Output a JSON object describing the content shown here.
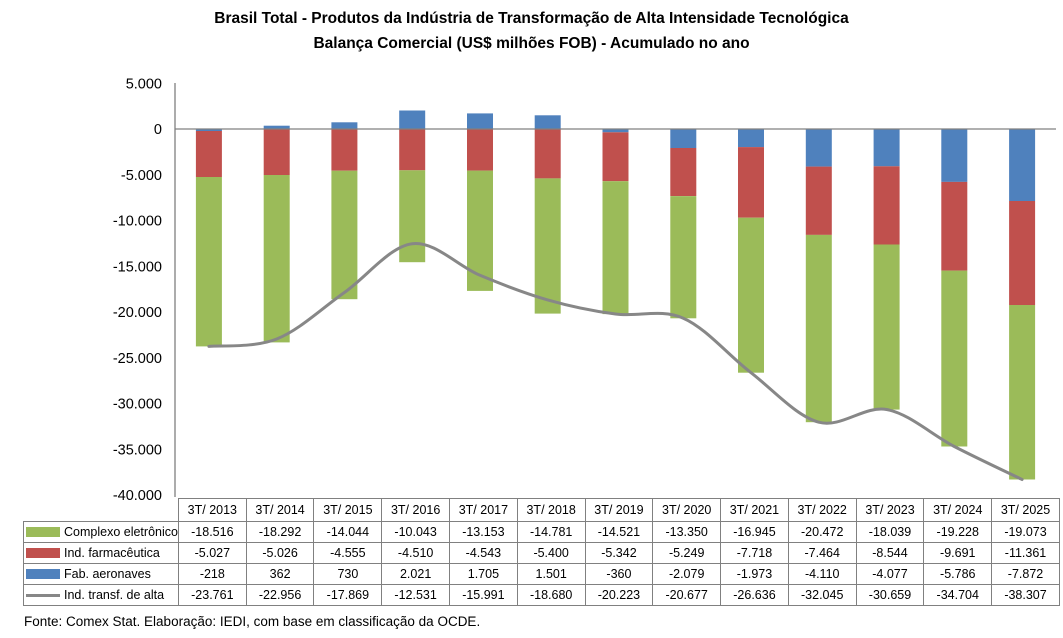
{
  "title": {
    "line1": "Brasil Total - Produtos da Indústria de Transformação de Alta Intensidade Tecnológica",
    "line2": "Balança Comercial (US$ milhões FOB) - Acumulado no ano"
  },
  "footer": {
    "source_note": "Fonte: Comex Stat. Elaboração: IEDI, com base em classificação da OCDE."
  },
  "chart_data": {
    "type": "bar",
    "subtype": "stacked-bars-with-smoothed-line-overlay-and-data-table",
    "title": "Brasil Total - Produtos da Indústria de Transformação de Alta Intensidade Tecnológica - Balança Comercial (US$ milhões FOB) - Acumulado no ano",
    "xlabel": "",
    "ylabel": "",
    "categories": [
      "3T/ 2013",
      "3T/ 2014",
      "3T/ 2015",
      "3T/ 2016",
      "3T/ 2017",
      "3T/ 2018",
      "3T/ 2019",
      "3T/ 2020",
      "3T/ 2021",
      "3T/ 2022",
      "3T/ 2023",
      "3T/ 2024",
      "3T/ 2025"
    ],
    "series": [
      {
        "name": "Complexo eletrônico",
        "type": "bar",
        "color": "#9BBB59",
        "values": [
          -18516,
          -18292,
          -14044,
          -10043,
          -13153,
          -14781,
          -14521,
          -13350,
          -16945,
          -20472,
          -18039,
          -19228,
          -19073
        ]
      },
      {
        "name": "Ind. farmacêutica",
        "type": "bar",
        "color": "#C0504D",
        "values": [
          -5027,
          -5026,
          -4555,
          -4510,
          -4543,
          -5400,
          -5342,
          -5249,
          -7718,
          -7464,
          -8544,
          -9691,
          -11361
        ]
      },
      {
        "name": "Fab. aeronaves",
        "type": "bar",
        "color": "#4F81BD",
        "values": [
          -218,
          362,
          730,
          2021,
          1705,
          1501,
          -360,
          -2079,
          -1973,
          -4110,
          -4077,
          -5786,
          -7872
        ]
      },
      {
        "name": "Ind. transf. de alta",
        "type": "line",
        "color": "#878787",
        "values": [
          -23761,
          -22956,
          -17869,
          -12531,
          -15991,
          -18680,
          -20223,
          -20677,
          -26636,
          -32045,
          -30659,
          -34704,
          -38307
        ]
      }
    ],
    "ylim": [
      -40000,
      5000
    ],
    "ytick_interval": 5000,
    "ytick_labels": [
      "5.000",
      "0",
      "-5.000",
      "-10.000",
      "-15.000",
      "-20.000",
      "-25.000",
      "-30.000",
      "-35.000",
      "-40.000"
    ],
    "grid": false,
    "zero_line": true,
    "line_smoothed": true,
    "negative_stack_order_from_zero": [
      "Fab. aeronaves",
      "Ind. farmacêutica",
      "Complexo eletrônico"
    ],
    "legend_position": "left column of data table below chart",
    "number_format": "thousands separated by dot"
  },
  "colors": {
    "bar_green": "#9BBB59",
    "bar_red": "#C0504D",
    "bar_blue": "#4F81BD",
    "line_gray": "#878787",
    "axis_gray": "#808080",
    "table_border": "#808080",
    "background": "#FFFFFF"
  }
}
